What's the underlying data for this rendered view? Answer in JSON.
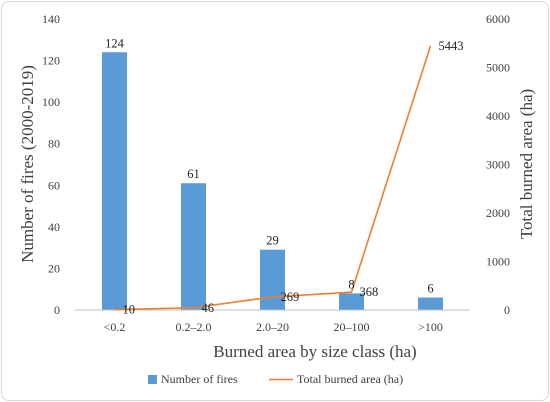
{
  "chart_data": {
    "type": "bar",
    "categories": [
      "<0.2",
      "0.2–2.0",
      "2.0–20",
      "20–100",
      ">100"
    ],
    "series": [
      {
        "name": "Number of fires",
        "chart_type": "bar",
        "axis": "left",
        "values": [
          124,
          61,
          29,
          8,
          6
        ],
        "color": "#5b9bd5"
      },
      {
        "name": "Total burned area (ha)",
        "chart_type": "line",
        "axis": "right",
        "values": [
          10,
          46,
          269,
          368,
          5443
        ],
        "color": "#ed7d31"
      }
    ],
    "xlabel": "Burned area by size class  (ha)",
    "ylabel": "Number of fires  (2000-2019)",
    "y2label": "Total burned area (ha)",
    "ylim": [
      0,
      140
    ],
    "y2lim": [
      0,
      6000
    ],
    "yticks": [
      0,
      20,
      40,
      60,
      80,
      100,
      120,
      140
    ],
    "y2ticks": [
      0,
      1000,
      2000,
      3000,
      4000,
      5000,
      6000
    ],
    "grid": false,
    "legend_position": "bottom"
  }
}
